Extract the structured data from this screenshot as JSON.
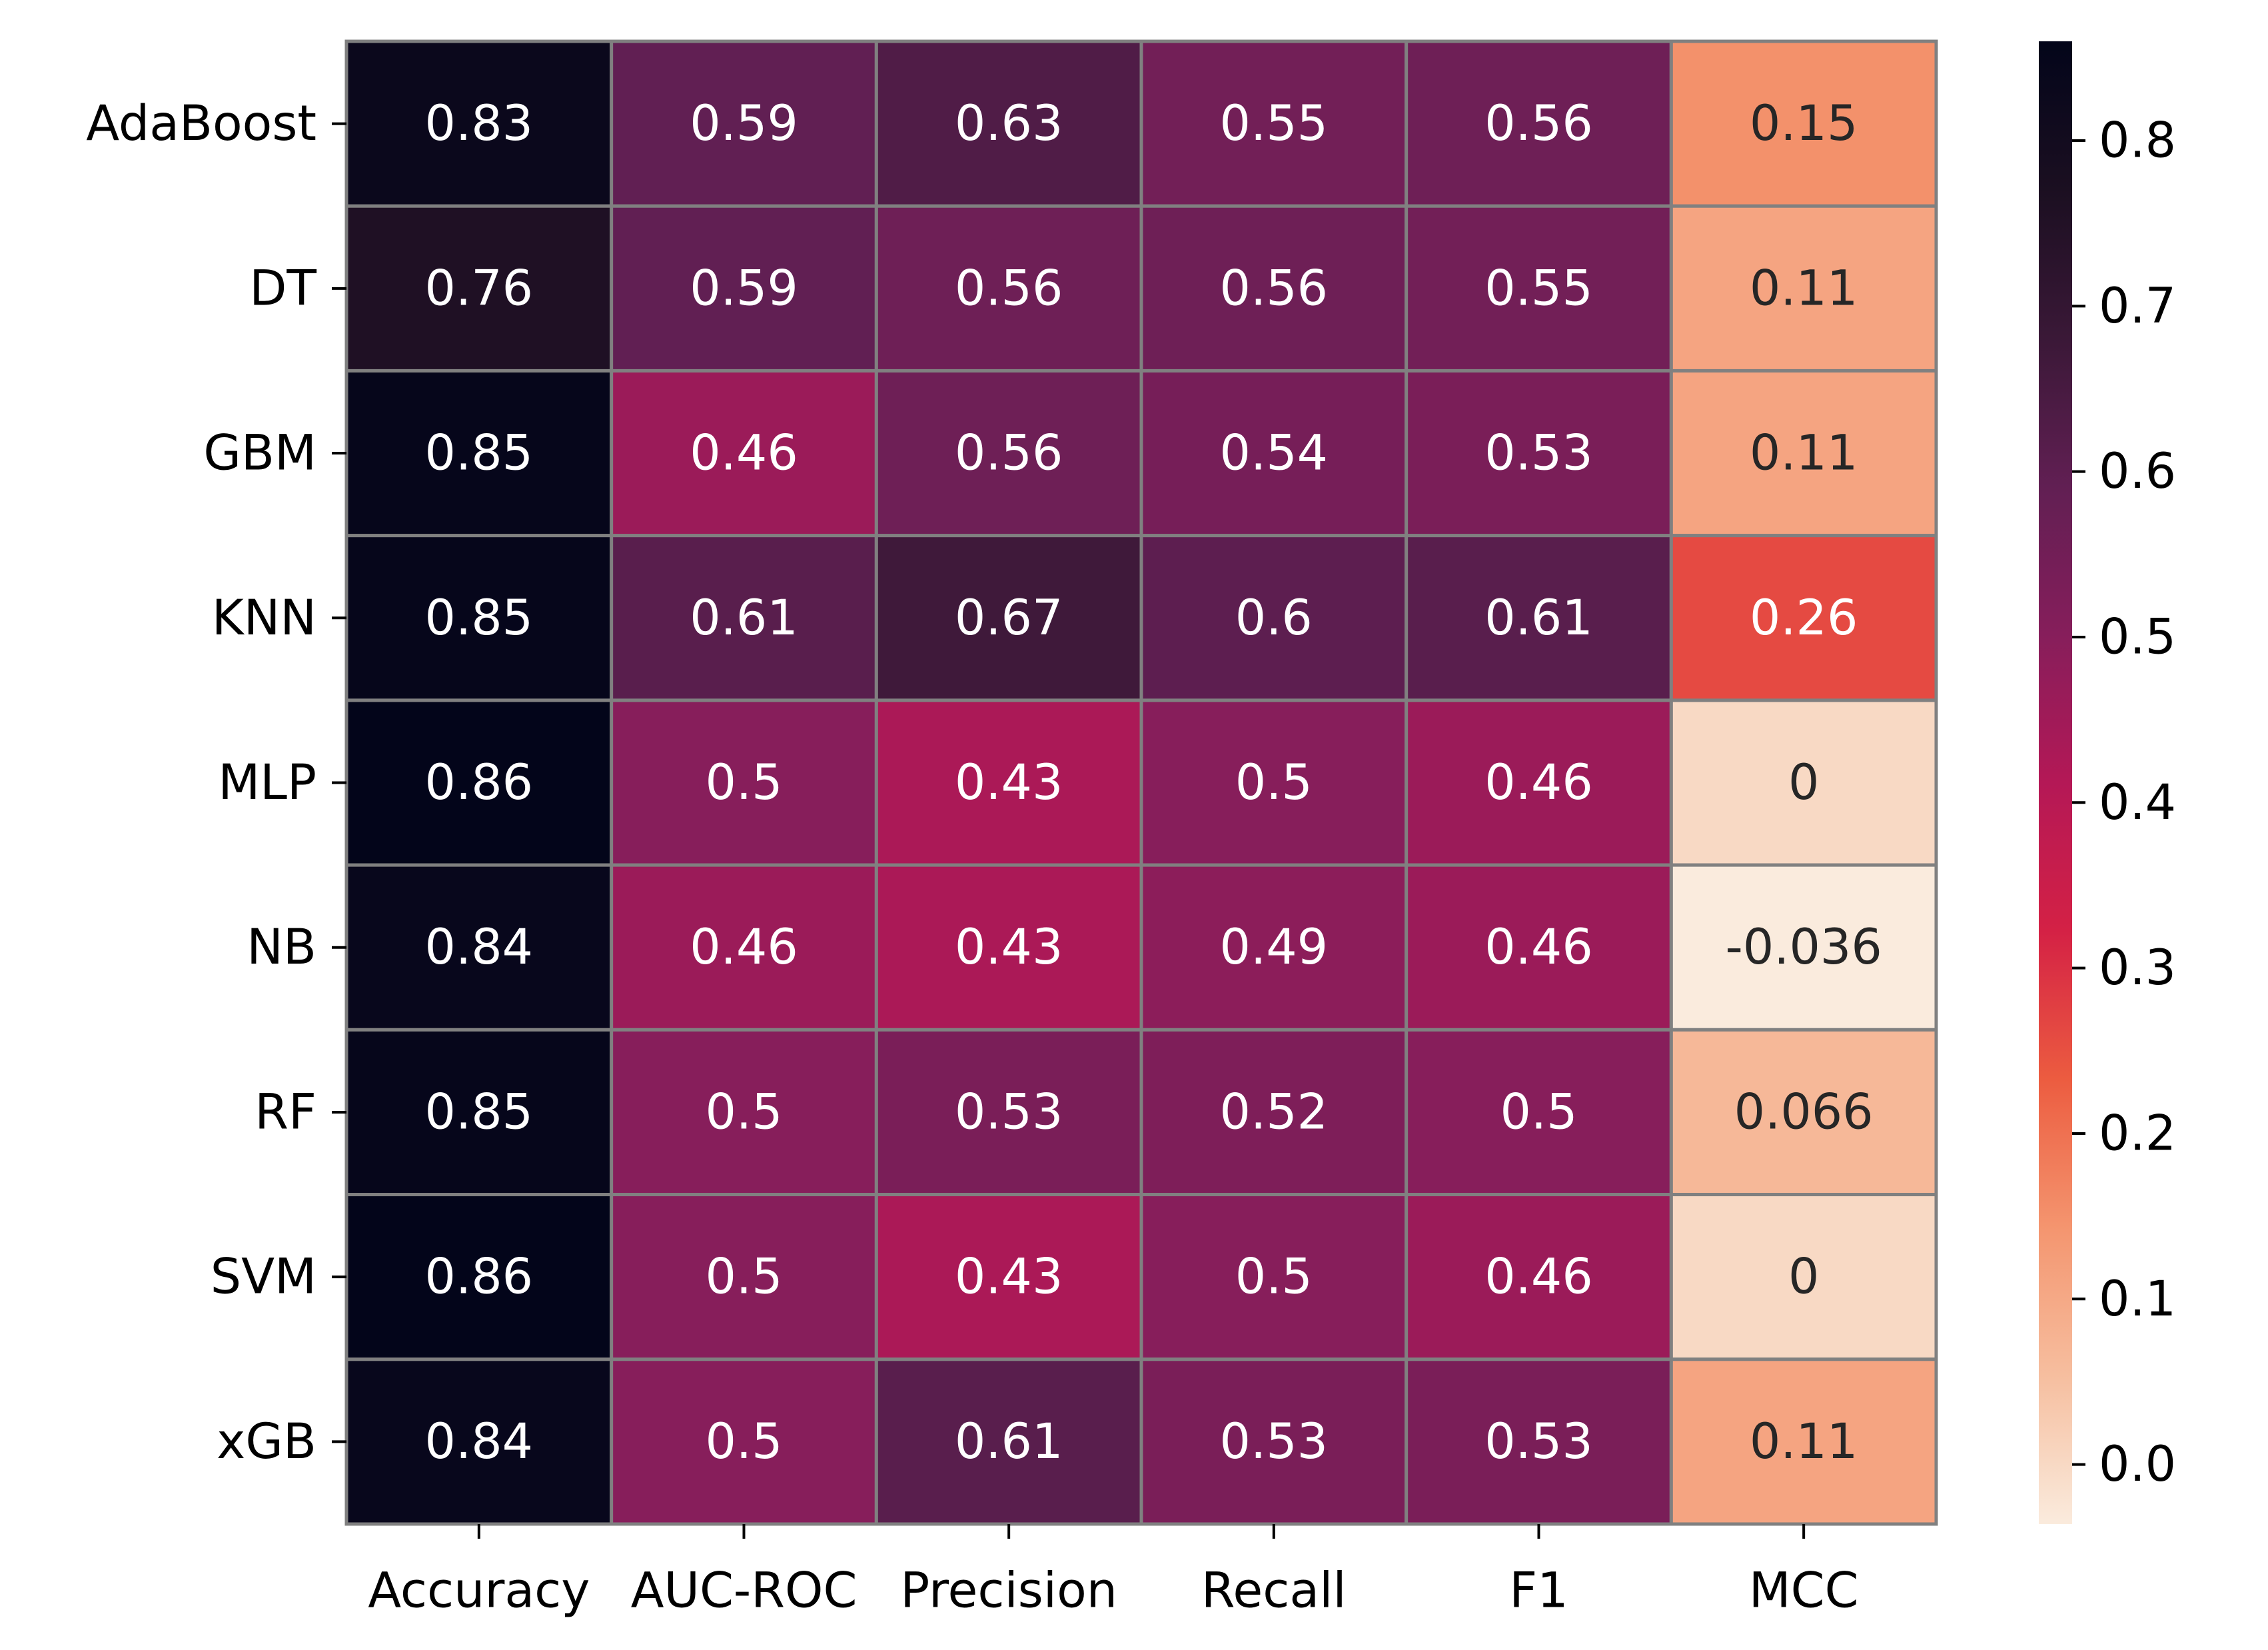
{
  "chart_data": {
    "type": "heatmap",
    "title": "",
    "xlabel": "",
    "ylabel": "",
    "x_categories": [
      "Accuracy",
      "AUC-ROC",
      "Precision",
      "Recall",
      "F1",
      "MCC"
    ],
    "y_categories": [
      "AdaBoost",
      "DT",
      "GBM",
      "KNN",
      "MLP",
      "NB",
      "RF",
      "SVM",
      "xGB"
    ],
    "values": [
      [
        0.83,
        0.59,
        0.63,
        0.55,
        0.56,
        0.15
      ],
      [
        0.76,
        0.59,
        0.56,
        0.56,
        0.55,
        0.11
      ],
      [
        0.85,
        0.46,
        0.56,
        0.54,
        0.53,
        0.11
      ],
      [
        0.85,
        0.61,
        0.67,
        0.6,
        0.61,
        0.26
      ],
      [
        0.86,
        0.5,
        0.43,
        0.5,
        0.46,
        0
      ],
      [
        0.84,
        0.46,
        0.43,
        0.49,
        0.46,
        -0.036
      ],
      [
        0.85,
        0.5,
        0.53,
        0.52,
        0.5,
        0.066
      ],
      [
        0.86,
        0.5,
        0.43,
        0.5,
        0.46,
        0
      ],
      [
        0.84,
        0.5,
        0.61,
        0.53,
        0.53,
        0.11
      ]
    ],
    "annotations": [
      [
        "0.83",
        "0.59",
        "0.63",
        "0.55",
        "0.56",
        "0.15"
      ],
      [
        "0.76",
        "0.59",
        "0.56",
        "0.56",
        "0.55",
        "0.11"
      ],
      [
        "0.85",
        "0.46",
        "0.56",
        "0.54",
        "0.53",
        "0.11"
      ],
      [
        "0.85",
        "0.61",
        "0.67",
        "0.6",
        "0.61",
        "0.26"
      ],
      [
        "0.86",
        "0.5",
        "0.43",
        "0.5",
        "0.46",
        "0"
      ],
      [
        "0.84",
        "0.46",
        "0.43",
        "0.49",
        "0.46",
        "-0.036"
      ],
      [
        "0.85",
        "0.5",
        "0.53",
        "0.52",
        "0.5",
        "0.066"
      ],
      [
        "0.86",
        "0.5",
        "0.43",
        "0.5",
        "0.46",
        "0"
      ],
      [
        "0.84",
        "0.5",
        "0.61",
        "0.53",
        "0.53",
        "0.11"
      ]
    ],
    "colormap": "rocket_r",
    "vmin": -0.036,
    "vmax": 0.86,
    "cell_border_color": "#808080",
    "colorbar": {
      "ticks": [
        0.0,
        0.1,
        0.2,
        0.3,
        0.4,
        0.5,
        0.6,
        0.7,
        0.8
      ],
      "tick_labels": [
        "0.0",
        "0.1",
        "0.2",
        "0.3",
        "0.4",
        "0.5",
        "0.6",
        "0.7",
        "0.8"
      ]
    },
    "colors": {
      "dark_text": "#262626",
      "light_text": "#ffffff",
      "axis": "#000000",
      "background": "#ffffff"
    }
  }
}
